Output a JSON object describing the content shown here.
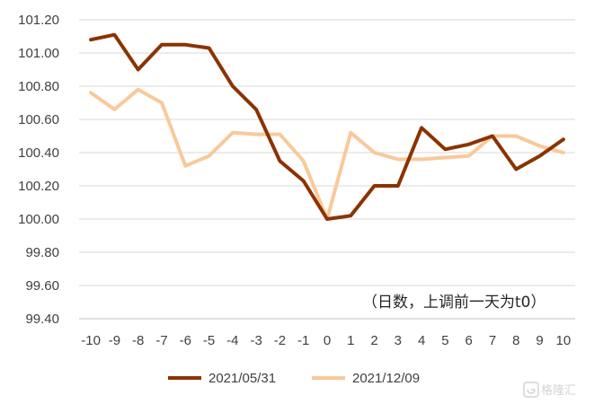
{
  "chart_data": {
    "type": "line",
    "title": "",
    "xlabel": "",
    "ylabel": "",
    "x": [
      -10,
      -9,
      -8,
      -7,
      -6,
      -5,
      -4,
      -3,
      -2,
      -1,
      0,
      1,
      2,
      3,
      4,
      5,
      6,
      7,
      8,
      9,
      10
    ],
    "x_tick_labels": [
      "-10",
      "-9",
      "-8",
      "-7",
      "-6",
      "-5",
      "-4",
      "-3",
      "-2",
      "-1",
      "0",
      "1",
      "2",
      "3",
      "4",
      "5",
      "6",
      "7",
      "8",
      "9",
      "10"
    ],
    "ylim": [
      99.4,
      101.2
    ],
    "y_ticks": [
      "99.40",
      "99.60",
      "99.80",
      "100.00",
      "100.20",
      "100.40",
      "100.60",
      "100.80",
      "101.00",
      "101.20"
    ],
    "grid": true,
    "legend_position": "bottom",
    "annotation": "（日数，上调前一天为t0）",
    "series": [
      {
        "name": "2021/05/31",
        "color": "#8B3300",
        "values": [
          101.08,
          101.11,
          100.9,
          101.05,
          101.05,
          101.03,
          100.8,
          100.66,
          100.35,
          100.23,
          100.0,
          100.02,
          100.2,
          100.2,
          100.55,
          100.42,
          100.45,
          100.5,
          100.3,
          100.38,
          100.48
        ]
      },
      {
        "name": "2021/12/09",
        "color": "#F9C99A",
        "values": [
          100.76,
          100.66,
          100.78,
          100.7,
          100.32,
          100.38,
          100.52,
          100.51,
          100.51,
          100.35,
          100.0,
          100.52,
          100.4,
          100.36,
          100.36,
          100.37,
          100.38,
          100.5,
          100.5,
          100.44,
          100.4
        ]
      }
    ]
  },
  "watermark": {
    "icon": "brand-logo-icon",
    "text": "格隆汇"
  }
}
